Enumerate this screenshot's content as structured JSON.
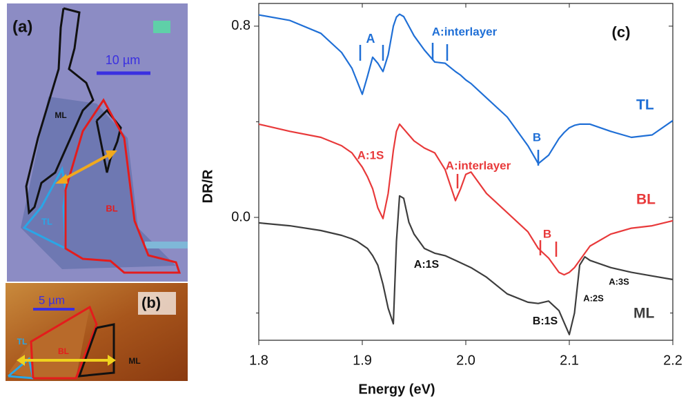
{
  "panel_a": {
    "label": "(a)",
    "scale_bar": "10 µm",
    "regions": [
      "ML",
      "TL",
      "BL"
    ]
  },
  "panel_b": {
    "label": "(b)",
    "scale_bar": "5 µm",
    "regions": [
      "TL",
      "BL",
      "ML"
    ]
  },
  "chart_data": {
    "type": "line",
    "panel_label": "(c)",
    "x_label": "Energy (eV)",
    "y_label": "DR/R",
    "xlim": [
      1.8,
      2.2
    ],
    "xticks": [
      1.8,
      1.9,
      {
        "value": 2.0,
        "label": "2.0"
      },
      2.1,
      2.2
    ],
    "ylim": [
      -0.514,
      0.895
    ],
    "yticks": [
      {
        "value": 0.0,
        "label": "0.0"
      },
      0.8
    ],
    "yminor_ticks": [
      -0.4,
      0.4
    ],
    "x": [
      1.8,
      1.83,
      1.86,
      1.88,
      1.89,
      1.895,
      1.9,
      1.905,
      1.91,
      1.915,
      1.92,
      1.925,
      1.93,
      1.933,
      1.936,
      1.94,
      1.945,
      1.95,
      1.96,
      1.97,
      1.98,
      1.99,
      1.995,
      2.0,
      2.005,
      2.02,
      2.04,
      2.06,
      2.07,
      2.08,
      2.09,
      2.095,
      2.1,
      2.105,
      2.11,
      2.115,
      2.12,
      2.14,
      2.16,
      2.18,
      2.2
    ],
    "series": [
      {
        "name": "TL",
        "color": "#1f6fd6",
        "values": [
          0.847,
          0.824,
          0.77,
          0.69,
          0.624,
          0.57,
          0.515,
          0.59,
          0.67,
          0.645,
          0.61,
          0.68,
          0.8,
          0.838,
          0.85,
          0.84,
          0.8,
          0.76,
          0.7,
          0.65,
          0.645,
          0.61,
          0.595,
          0.575,
          0.56,
          0.5,
          0.42,
          0.3,
          0.225,
          0.26,
          0.33,
          0.355,
          0.375,
          0.385,
          0.39,
          0.39,
          0.39,
          0.36,
          0.335,
          0.345,
          0.405
        ]
      },
      {
        "name": "BL",
        "color": "#e8393a",
        "values": [
          0.39,
          0.36,
          0.335,
          0.3,
          0.27,
          0.24,
          0.21,
          0.17,
          0.12,
          0.04,
          -0.005,
          0.1,
          0.28,
          0.36,
          0.39,
          0.37,
          0.345,
          0.32,
          0.29,
          0.27,
          0.2,
          0.07,
          0.12,
          0.18,
          0.19,
          0.1,
          0.02,
          -0.06,
          -0.13,
          -0.17,
          -0.23,
          -0.24,
          -0.23,
          -0.21,
          -0.18,
          -0.15,
          -0.12,
          -0.07,
          -0.045,
          -0.035,
          -0.014
        ]
      },
      {
        "name": "ML",
        "color": "#3d3d3d",
        "values": [
          -0.023,
          -0.035,
          -0.055,
          -0.075,
          -0.09,
          -0.1,
          -0.115,
          -0.13,
          -0.16,
          -0.2,
          -0.28,
          -0.38,
          -0.445,
          -0.1,
          0.09,
          0.08,
          -0.02,
          -0.07,
          -0.13,
          -0.15,
          -0.16,
          -0.18,
          -0.19,
          -0.2,
          -0.21,
          -0.25,
          -0.32,
          -0.355,
          -0.36,
          -0.35,
          -0.39,
          -0.44,
          -0.49,
          -0.4,
          -0.2,
          -0.165,
          -0.18,
          -0.21,
          -0.23,
          -0.245,
          -0.26
        ]
      }
    ],
    "annotations": [
      {
        "text": "A",
        "color": "#1f6fd6"
      },
      {
        "text": "A:interlayer",
        "color": "#1f6fd6"
      },
      {
        "text": "B",
        "color": "#1f6fd6"
      },
      {
        "text": "A:1S",
        "color": "#e8393a"
      },
      {
        "text": "A:interlayer",
        "color": "#e8393a"
      },
      {
        "text": "B",
        "color": "#e8393a"
      },
      {
        "text": "A:1S",
        "color": "#111111"
      },
      {
        "text": "B:1S",
        "color": "#111111"
      },
      {
        "text": "A:2S",
        "color": "#111111"
      },
      {
        "text": "A:3S",
        "color": "#111111"
      }
    ]
  }
}
